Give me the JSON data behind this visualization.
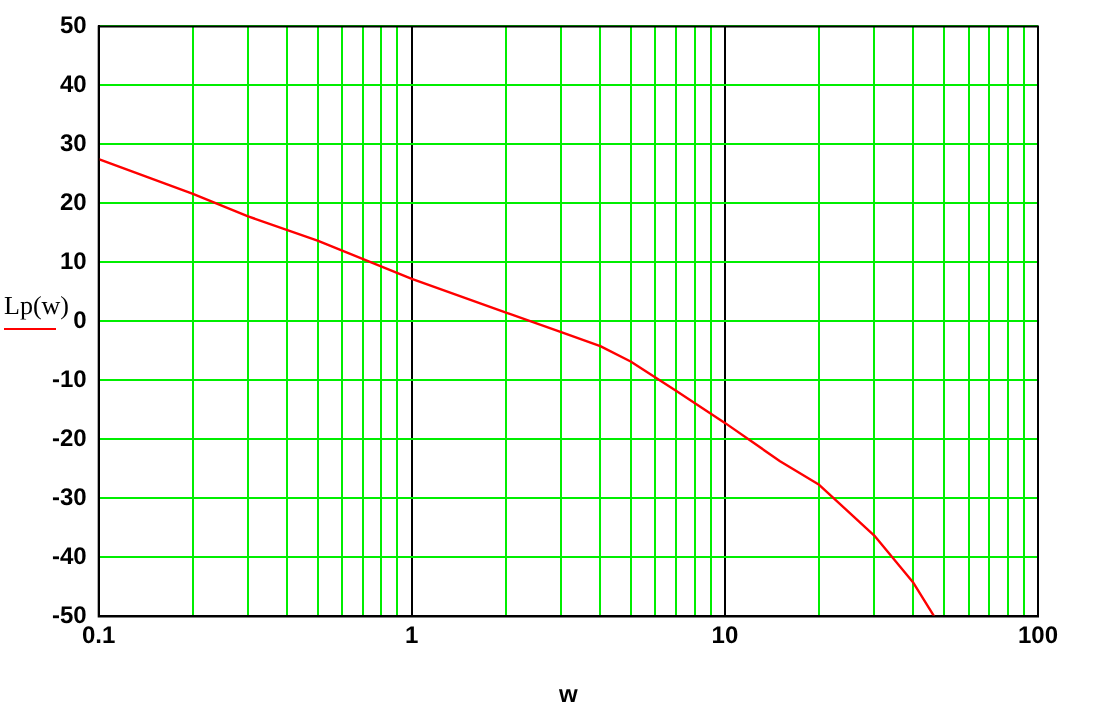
{
  "chart_data": {
    "type": "line",
    "xlabel": "w",
    "legend": "left",
    "log": "x",
    "grid": true,
    "marker": "none",
    "line_style": "solid",
    "xlim": [
      0.1,
      100
    ],
    "xticks": [
      0.1,
      {
        "value": 0.2,
        "label": null
      },
      {
        "value": 0.3,
        "label": null
      },
      {
        "value": 0.4,
        "label": null
      },
      {
        "value": 0.5,
        "label": null
      },
      {
        "value": 0.6,
        "label": null
      },
      {
        "value": 0.7,
        "label": null
      },
      {
        "value": 0.8,
        "label": null
      },
      {
        "value": 0.9,
        "label": null
      },
      1,
      {
        "value": 2,
        "label": null
      },
      {
        "value": 3,
        "label": null
      },
      {
        "value": 4,
        "label": null
      },
      {
        "value": 5,
        "label": null
      },
      {
        "value": 6,
        "label": null
      },
      {
        "value": 7,
        "label": null
      },
      {
        "value": 8,
        "label": null
      },
      {
        "value": 9,
        "label": null
      },
      10,
      {
        "value": 20,
        "label": null
      },
      {
        "value": 30,
        "label": null
      },
      {
        "value": 40,
        "label": null
      },
      {
        "value": 50,
        "label": null
      },
      {
        "value": 60,
        "label": null
      },
      {
        "value": 70,
        "label": null
      },
      {
        "value": 80,
        "label": null
      },
      {
        "value": 90,
        "label": null
      },
      100
    ],
    "ylim": [
      -50,
      50
    ],
    "yticks": [
      -50,
      -40,
      -30,
      -20,
      -10,
      0,
      10,
      20,
      30,
      40,
      50
    ],
    "series": [
      {
        "name": "Lp(w)",
        "color": "#ff0000",
        "x": [
          0.1,
          0.2,
          0.3,
          0.5,
          1,
          2,
          3,
          4,
          5,
          7,
          10,
          15,
          20,
          30,
          40,
          46.6
        ],
        "values": [
          27.5,
          21.6,
          17.8,
          13.7,
          7.2,
          1.5,
          -1.8,
          -4.2,
          -6.8,
          -11.8,
          -17.2,
          -23.7,
          -27.7,
          -36.3,
          -44.3,
          -50
        ]
      }
    ]
  }
}
